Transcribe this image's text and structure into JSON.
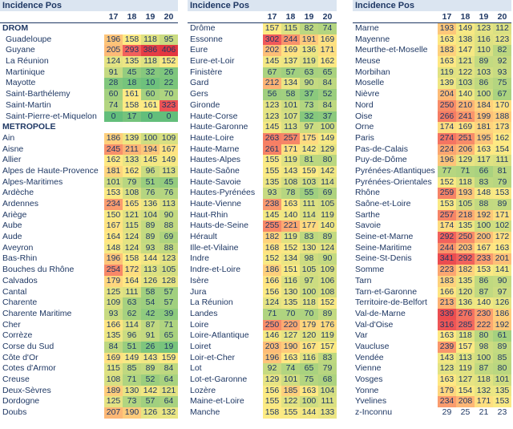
{
  "columns_header": [
    "17",
    "18",
    "19",
    "20"
  ],
  "colors": {
    "text": "#1f3864",
    "scale": [
      "#63be7b",
      "#a4d07e",
      "#e3e383",
      "#ffd880",
      "#fcab72",
      "#f8696b",
      "#e8384a"
    ]
  },
  "panels": [
    {
      "title": "Incidence Pos",
      "rows": [
        {
          "section": true,
          "name": "DROM"
        },
        {
          "name": "Guadeloupe",
          "v": [
            196,
            158,
            118,
            95
          ],
          "ind": true
        },
        {
          "name": "Guyane",
          "v": [
            205,
            293,
            386,
            406
          ],
          "ind": true
        },
        {
          "name": "La Réunion",
          "v": [
            124,
            135,
            118,
            152
          ],
          "ind": true
        },
        {
          "name": "Martinique",
          "v": [
            91,
            45,
            32,
            26
          ],
          "ind": true
        },
        {
          "name": "Mayotte",
          "v": [
            28,
            18,
            10,
            22
          ],
          "ind": true
        },
        {
          "name": "Saint-Barthélemy",
          "v": [
            60,
            161,
            60,
            70
          ],
          "ind": true
        },
        {
          "name": "Saint-Martin",
          "v": [
            74,
            158,
            161,
            323
          ],
          "ind": true
        },
        {
          "name": "Saint-Pierre-et-Miquelon",
          "v": [
            0,
            17,
            0,
            0
          ],
          "ind": true
        },
        {
          "section": true,
          "name": "METROPOLE"
        },
        {
          "name": "Ain",
          "v": [
            186,
            139,
            100,
            109
          ]
        },
        {
          "name": "Aisne",
          "v": [
            245,
            211,
            194,
            167
          ]
        },
        {
          "name": "Allier",
          "v": [
            162,
            133,
            145,
            149
          ]
        },
        {
          "name": "Alpes de Haute-Provence",
          "v": [
            181,
            162,
            96,
            113
          ]
        },
        {
          "name": "Alpes-Maritimes",
          "v": [
            101,
            79,
            51,
            45
          ]
        },
        {
          "name": "Ardèche",
          "v": [
            153,
            108,
            76,
            76
          ]
        },
        {
          "name": "Ardennes",
          "v": [
            234,
            165,
            136,
            113
          ]
        },
        {
          "name": "Ariège",
          "v": [
            150,
            121,
            104,
            90
          ]
        },
        {
          "name": "Aube",
          "v": [
            167,
            115,
            89,
            88
          ]
        },
        {
          "name": "Aude",
          "v": [
            164,
            124,
            89,
            69
          ]
        },
        {
          "name": "Aveyron",
          "v": [
            148,
            124,
            93,
            88
          ]
        },
        {
          "name": "Bas-Rhin",
          "v": [
            196,
            158,
            144,
            123
          ]
        },
        {
          "name": "Bouches du Rhône",
          "v": [
            254,
            172,
            113,
            105
          ]
        },
        {
          "name": "Calvados",
          "v": [
            179,
            164,
            126,
            128
          ]
        },
        {
          "name": "Cantal",
          "v": [
            125,
            111,
            58,
            57
          ]
        },
        {
          "name": "Charente",
          "v": [
            109,
            63,
            54,
            57
          ]
        },
        {
          "name": "Charente Maritime",
          "v": [
            93,
            62,
            42,
            39
          ]
        },
        {
          "name": "Cher",
          "v": [
            166,
            114,
            87,
            71
          ]
        },
        {
          "name": "Corrèze",
          "v": [
            135,
            96,
            91,
            65
          ]
        },
        {
          "name": "Corse du Sud",
          "v": [
            84,
            51,
            26,
            19
          ]
        },
        {
          "name": "Côte d'Or",
          "v": [
            169,
            149,
            143,
            159
          ]
        },
        {
          "name": "Cotes d'Armor",
          "v": [
            115,
            85,
            89,
            84
          ]
        },
        {
          "name": "Creuse",
          "v": [
            108,
            71,
            52,
            64
          ]
        },
        {
          "name": "Deux-Sèvres",
          "v": [
            189,
            130,
            142,
            121
          ]
        },
        {
          "name": "Dordogne",
          "v": [
            125,
            73,
            57,
            64
          ]
        },
        {
          "name": "Doubs",
          "v": [
            207,
            190,
            126,
            132
          ]
        }
      ]
    },
    {
      "title": "Incidence Pos",
      "rows": [
        {
          "name": "Drôme",
          "v": [
            157,
            115,
            82,
            74
          ]
        },
        {
          "name": "Essonne",
          "v": [
            302,
            244,
            191,
            169
          ]
        },
        {
          "name": "Eure",
          "v": [
            202,
            169,
            136,
            171
          ]
        },
        {
          "name": "Eure-et-Loir",
          "v": [
            145,
            137,
            119,
            162
          ]
        },
        {
          "name": "Finistère",
          "v": [
            67,
            57,
            63,
            65
          ]
        },
        {
          "name": "Gard",
          "v": [
            212,
            134,
            90,
            84
          ]
        },
        {
          "name": "Gers",
          "v": [
            56,
            58,
            37,
            52
          ]
        },
        {
          "name": "Gironde",
          "v": [
            123,
            101,
            73,
            84
          ]
        },
        {
          "name": "Haute-Corse",
          "v": [
            123,
            107,
            32,
            37
          ]
        },
        {
          "name": "Haute-Garonne",
          "v": [
            145,
            113,
            97,
            100
          ]
        },
        {
          "name": "Haute-Loire",
          "v": [
            263,
            257,
            175,
            149
          ]
        },
        {
          "name": "Haute-Marne",
          "v": [
            261,
            171,
            142,
            129
          ]
        },
        {
          "name": "Hautes-Alpes",
          "v": [
            155,
            119,
            81,
            80
          ]
        },
        {
          "name": "Haute-Saône",
          "v": [
            155,
            143,
            159,
            142
          ]
        },
        {
          "name": "Haute-Savoie",
          "v": [
            135,
            108,
            103,
            114
          ]
        },
        {
          "name": "Hautes-Pyrénées",
          "v": [
            93,
            78,
            55,
            69
          ]
        },
        {
          "name": "Haute-Vienne",
          "v": [
            238,
            163,
            111,
            105
          ]
        },
        {
          "name": "Haut-Rhin",
          "v": [
            145,
            140,
            114,
            119
          ]
        },
        {
          "name": "Hauts-de-Seine",
          "v": [
            255,
            221,
            177,
            140
          ]
        },
        {
          "name": "Hérault",
          "v": [
            182,
            119,
            83,
            89
          ]
        },
        {
          "name": "Ille-et-Vilaine",
          "v": [
            168,
            152,
            130,
            124
          ]
        },
        {
          "name": "Indre",
          "v": [
            152,
            134,
            98,
            90
          ]
        },
        {
          "name": "Indre-et-Loire",
          "v": [
            186,
            151,
            105,
            109
          ]
        },
        {
          "name": "Isère",
          "v": [
            166,
            116,
            97,
            106
          ]
        },
        {
          "name": "Jura",
          "v": [
            156,
            130,
            100,
            108
          ]
        },
        {
          "name": "La Réunion",
          "v": [
            124,
            135,
            118,
            152
          ]
        },
        {
          "name": "Landes",
          "v": [
            71,
            70,
            70,
            89
          ]
        },
        {
          "name": "Loire",
          "v": [
            250,
            220,
            179,
            176
          ]
        },
        {
          "name": "Loire-Atlantique",
          "v": [
            146,
            127,
            120,
            119
          ]
        },
        {
          "name": "Loiret",
          "v": [
            203,
            190,
            167,
            157
          ]
        },
        {
          "name": "Loir-et-Cher",
          "v": [
            196,
            163,
            116,
            83
          ]
        },
        {
          "name": "Lot",
          "v": [
            92,
            74,
            65,
            79
          ]
        },
        {
          "name": "Lot-et-Garonne",
          "v": [
            129,
            101,
            75,
            68
          ]
        },
        {
          "name": "Lozère",
          "v": [
            156,
            185,
            163,
            104
          ]
        },
        {
          "name": "Maine-et-Loire",
          "v": [
            155,
            122,
            100,
            111
          ]
        },
        {
          "name": "Manche",
          "v": [
            158,
            155,
            144,
            133
          ]
        }
      ]
    },
    {
      "title": "Incidence Pos",
      "rows": [
        {
          "name": "Marne",
          "v": [
            193,
            149,
            123,
            112
          ]
        },
        {
          "name": "Mayenne",
          "v": [
            163,
            138,
            116,
            123
          ]
        },
        {
          "name": "Meurthe-et-Moselle",
          "v": [
            183,
            147,
            110,
            82
          ]
        },
        {
          "name": "Meuse",
          "v": [
            163,
            121,
            89,
            92
          ]
        },
        {
          "name": "Morbihan",
          "v": [
            119,
            122,
            103,
            93
          ]
        },
        {
          "name": "Moselle",
          "v": [
            139,
            103,
            86,
            75
          ]
        },
        {
          "name": "Nièvre",
          "v": [
            204,
            140,
            100,
            67
          ]
        },
        {
          "name": "Nord",
          "v": [
            250,
            210,
            184,
            170
          ]
        },
        {
          "name": "Oise",
          "v": [
            266,
            241,
            199,
            188
          ]
        },
        {
          "name": "Orne",
          "v": [
            174,
            169,
            181,
            173
          ]
        },
        {
          "name": "Paris",
          "v": [
            274,
            251,
            195,
            162
          ]
        },
        {
          "name": "Pas-de-Calais",
          "v": [
            224,
            206,
            163,
            154
          ]
        },
        {
          "name": "Puy-de-Dôme",
          "v": [
            196,
            129,
            117,
            111
          ]
        },
        {
          "name": "Pyrénées-Atlantiques",
          "v": [
            77,
            71,
            66,
            81
          ]
        },
        {
          "name": "Pyrénées-Orientales",
          "v": [
            152,
            118,
            83,
            79
          ]
        },
        {
          "name": "Rhône",
          "v": [
            259,
            193,
            148,
            153
          ]
        },
        {
          "name": "Saône-et-Loire",
          "v": [
            153,
            105,
            88,
            89
          ]
        },
        {
          "name": "Sarthe",
          "v": [
            257,
            218,
            192,
            171
          ]
        },
        {
          "name": "Savoie",
          "v": [
            174,
            135,
            100,
            102
          ]
        },
        {
          "name": "Seine-et-Marne",
          "v": [
            292,
            250,
            200,
            172
          ]
        },
        {
          "name": "Seine-Maritime",
          "v": [
            244,
            203,
            167,
            163
          ]
        },
        {
          "name": "Seine-St-Denis",
          "v": [
            341,
            292,
            233,
            201
          ]
        },
        {
          "name": "Somme",
          "v": [
            223,
            182,
            153,
            141
          ]
        },
        {
          "name": "Tarn",
          "v": [
            183,
            135,
            86,
            90
          ]
        },
        {
          "name": "Tarn-et-Garonne",
          "v": [
            166,
            120,
            87,
            97
          ]
        },
        {
          "name": "Territoire-de-Belfort",
          "v": [
            213,
            136,
            140,
            126
          ]
        },
        {
          "name": "Val-de-Marne",
          "v": [
            339,
            276,
            230,
            186
          ]
        },
        {
          "name": "Val-d'Oise",
          "v": [
            316,
            285,
            222,
            192
          ]
        },
        {
          "name": "Var",
          "v": [
            163,
            118,
            80,
            61
          ]
        },
        {
          "name": "Vaucluse",
          "v": [
            239,
            157,
            98,
            89
          ]
        },
        {
          "name": "Vendée",
          "v": [
            143,
            113,
            100,
            85
          ]
        },
        {
          "name": "Vienne",
          "v": [
            123,
            119,
            87,
            80
          ]
        },
        {
          "name": "Vosges",
          "v": [
            163,
            127,
            118,
            101
          ]
        },
        {
          "name": "Yonne",
          "v": [
            179,
            154,
            132,
            135
          ]
        },
        {
          "name": "Yvelines",
          "v": [
            234,
            208,
            171,
            153
          ]
        },
        {
          "name": "z-Inconnu",
          "v": [
            29,
            25,
            21,
            23
          ],
          "plain": true
        }
      ]
    }
  ]
}
